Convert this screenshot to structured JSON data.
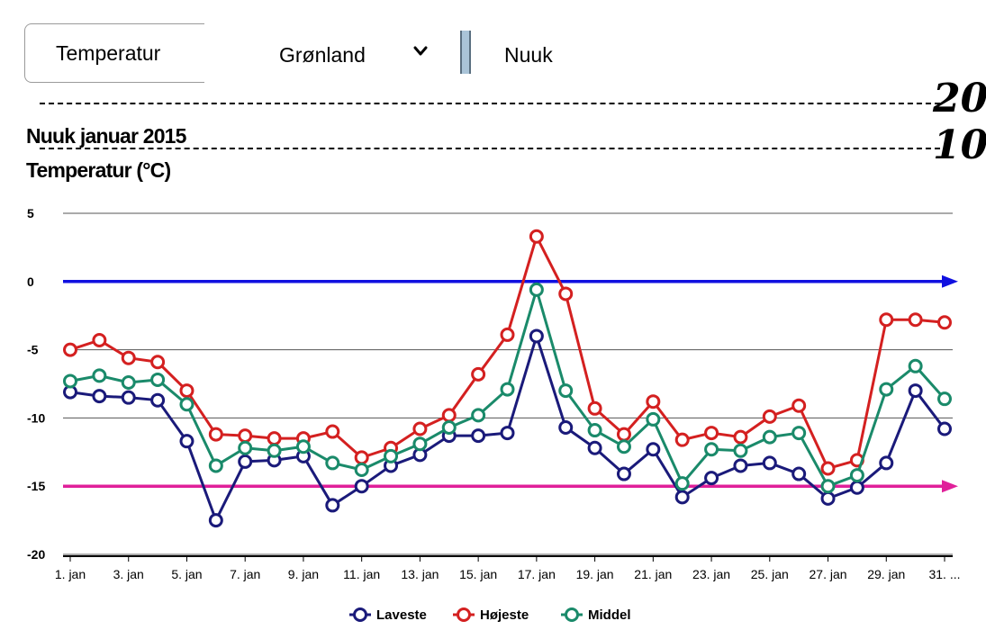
{
  "controls": {
    "variable_select": "Temperatur",
    "country_select": "Grønland",
    "city_select": "Nuuk"
  },
  "scale_labels": [
    "20",
    "10"
  ],
  "colors": {
    "lowest": "#1a1a7a",
    "highest": "#d42020",
    "mean": "#1a8a6a",
    "zero_line": "#1010e0",
    "minus15_line": "#e0209a",
    "grid": "#555555"
  },
  "chart_data": {
    "type": "line",
    "title": "Nuuk januar 2015",
    "ylabel": "Temperatur (°C)",
    "xlabel": "",
    "ylim": [
      -20,
      5
    ],
    "yticks": [
      5,
      0,
      -5,
      -10,
      -15,
      -20
    ],
    "grid": true,
    "legend_placement": "bottom-center",
    "x": [
      1,
      2,
      3,
      4,
      5,
      6,
      7,
      8,
      9,
      10,
      11,
      12,
      13,
      14,
      15,
      16,
      17,
      18,
      19,
      20,
      21,
      22,
      23,
      24,
      25,
      26,
      27,
      28,
      29,
      30,
      31
    ],
    "x_tick_labels": [
      "1. jan",
      "3. jan",
      "5. jan",
      "7. jan",
      "9. jan",
      "11. jan",
      "13. jan",
      "15. jan",
      "17. jan",
      "19. jan",
      "21. jan",
      "23. jan",
      "25. jan",
      "27. jan",
      "29. jan",
      "31. ..."
    ],
    "reference_lines": [
      {
        "y": 0,
        "color": "#1010e0"
      },
      {
        "y": -15,
        "color": "#e0209a"
      }
    ],
    "series": [
      {
        "name": "Laveste",
        "color": "#1a1a7a",
        "values": [
          -8.1,
          -8.4,
          -8.5,
          -8.7,
          -11.7,
          -17.5,
          -13.2,
          -13.1,
          -12.8,
          -16.4,
          -15.0,
          -13.5,
          -12.7,
          -11.3,
          -11.3,
          -11.1,
          -4.0,
          -10.7,
          -12.2,
          -14.1,
          -12.3,
          -15.8,
          -14.4,
          -13.5,
          -13.3,
          -14.1,
          -15.9,
          -15.1,
          -13.3,
          -8.0,
          -10.8
        ]
      },
      {
        "name": "Højeste",
        "color": "#d42020",
        "values": [
          -5.0,
          -4.3,
          -5.6,
          -5.9,
          -8.0,
          -11.2,
          -11.3,
          -11.5,
          -11.5,
          -11.0,
          -12.9,
          -12.2,
          -10.8,
          -9.8,
          -6.8,
          -3.9,
          3.3,
          -0.9,
          -9.3,
          -11.2,
          -8.8,
          -11.6,
          -11.1,
          -11.4,
          -9.9,
          -9.1,
          -13.7,
          -13.1,
          -2.8,
          -2.8,
          -3.0
        ]
      },
      {
        "name": "Middel",
        "color": "#1a8a6a",
        "values": [
          -7.3,
          -6.9,
          -7.4,
          -7.2,
          -9.0,
          -13.5,
          -12.2,
          -12.4,
          -12.1,
          -13.3,
          -13.8,
          -12.8,
          -11.9,
          -10.7,
          -9.8,
          -7.9,
          -0.6,
          -8.0,
          -10.9,
          -12.1,
          -10.1,
          -14.8,
          -12.3,
          -12.4,
          -11.4,
          -11.1,
          -15.0,
          -14.2,
          -7.9,
          -6.2,
          -8.6
        ]
      }
    ]
  }
}
